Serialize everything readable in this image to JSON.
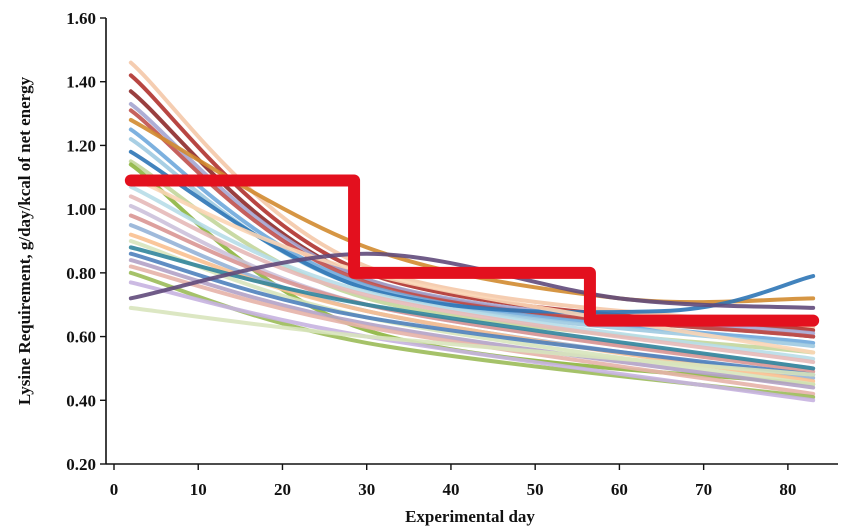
{
  "chart_data": {
    "type": "line",
    "xlabel": "Experimental day",
    "ylabel": "Lysine Requirement, g/day/kcal of net energy",
    "xlim": [
      0,
      85
    ],
    "ylim": [
      0.2,
      1.6
    ],
    "x_ticks": [
      "0",
      "10",
      "20",
      "30",
      "40",
      "50",
      "60",
      "70",
      "80"
    ],
    "y_ticks": [
      "0.20",
      "0.40",
      "0.60",
      "0.80",
      "1.00",
      "1.20",
      "1.40",
      "1.60"
    ],
    "grid": false,
    "legend": "none",
    "step_program": {
      "color": "#e3101e",
      "x": [
        2,
        28.5,
        28.5,
        56.5,
        56.5,
        83
      ],
      "y": [
        1.09,
        1.09,
        0.8,
        0.8,
        0.65,
        0.65
      ]
    },
    "individual_curves": [
      {
        "color": "#f4c8a8",
        "x": [
          2,
          30,
          83
        ],
        "y": [
          1.46,
          0.82,
          0.63
        ]
      },
      {
        "color": "#b0322e",
        "x": [
          2,
          30,
          83
        ],
        "y": [
          1.42,
          0.8,
          0.62
        ]
      },
      {
        "color": "#8e2a2a",
        "x": [
          2,
          30,
          83
        ],
        "y": [
          1.37,
          0.78,
          0.6
        ]
      },
      {
        "color": "#a5a5d0",
        "x": [
          2,
          30,
          83
        ],
        "y": [
          1.33,
          0.78,
          0.61
        ]
      },
      {
        "color": "#c0504d",
        "x": [
          2,
          30,
          83
        ],
        "y": [
          1.31,
          0.77,
          0.6
        ]
      },
      {
        "color": "#d28b30",
        "x": [
          2,
          30,
          60,
          83
        ],
        "y": [
          1.28,
          0.88,
          0.72,
          0.72
        ]
      },
      {
        "color": "#6fa8dc",
        "x": [
          2,
          30,
          83
        ],
        "y": [
          1.25,
          0.76,
          0.58
        ]
      },
      {
        "color": "#9ecae1",
        "x": [
          2,
          30,
          83
        ],
        "y": [
          1.22,
          0.75,
          0.57
        ]
      },
      {
        "color": "#2e75b6",
        "x": [
          2,
          30,
          65,
          83
        ],
        "y": [
          1.18,
          0.75,
          0.68,
          0.79
        ]
      },
      {
        "color": "#c3d69b",
        "x": [
          2,
          30,
          83
        ],
        "y": [
          1.15,
          0.72,
          0.55
        ]
      },
      {
        "color": "#8db53f",
        "x": [
          2,
          30,
          83
        ],
        "y": [
          1.14,
          0.62,
          0.45
        ]
      },
      {
        "color": "#fbd5b5",
        "x": [
          2,
          30,
          83
        ],
        "y": [
          1.1,
          0.8,
          0.55
        ]
      },
      {
        "color": "#b7dde8",
        "x": [
          2,
          30,
          83
        ],
        "y": [
          1.07,
          0.74,
          0.53
        ]
      },
      {
        "color": "#e6b9b8",
        "x": [
          2,
          30,
          83
        ],
        "y": [
          1.04,
          0.73,
          0.52
        ]
      },
      {
        "color": "#ccc1da",
        "x": [
          2,
          30,
          83
        ],
        "y": [
          1.01,
          0.7,
          0.5
        ]
      },
      {
        "color": "#d99694",
        "x": [
          2,
          30,
          83
        ],
        "y": [
          0.98,
          0.7,
          0.49
        ]
      },
      {
        "color": "#95b3d7",
        "x": [
          2,
          30,
          83
        ],
        "y": [
          0.95,
          0.68,
          0.47
        ]
      },
      {
        "color": "#fac090",
        "x": [
          2,
          30,
          83
        ],
        "y": [
          0.92,
          0.68,
          0.46
        ]
      },
      {
        "color": "#d7e4bd",
        "x": [
          2,
          30,
          83
        ],
        "y": [
          0.9,
          0.66,
          0.45
        ]
      },
      {
        "color": "#31859c",
        "x": [
          2,
          30,
          83
        ],
        "y": [
          0.88,
          0.7,
          0.5
        ]
      },
      {
        "color": "#4f81bd",
        "x": [
          2,
          30,
          83
        ],
        "y": [
          0.86,
          0.66,
          0.48
        ]
      },
      {
        "color": "#b3a2c7",
        "x": [
          2,
          30,
          83
        ],
        "y": [
          0.84,
          0.64,
          0.44
        ]
      },
      {
        "color": "#e5b3a8",
        "x": [
          2,
          30,
          83
        ],
        "y": [
          0.82,
          0.63,
          0.42
        ]
      },
      {
        "color": "#9bbb59",
        "x": [
          2,
          30,
          83
        ],
        "y": [
          0.8,
          0.58,
          0.41
        ]
      },
      {
        "color": "#c6b2e0",
        "x": [
          2,
          30,
          83
        ],
        "y": [
          0.77,
          0.6,
          0.4
        ]
      },
      {
        "color": "#604a7b",
        "x": [
          2,
          30,
          60,
          83
        ],
        "y": [
          0.72,
          0.86,
          0.72,
          0.69
        ]
      },
      {
        "color": "#d8e4bc",
        "x": [
          2,
          30,
          83
        ],
        "y": [
          0.69,
          0.6,
          0.48
        ]
      }
    ]
  }
}
